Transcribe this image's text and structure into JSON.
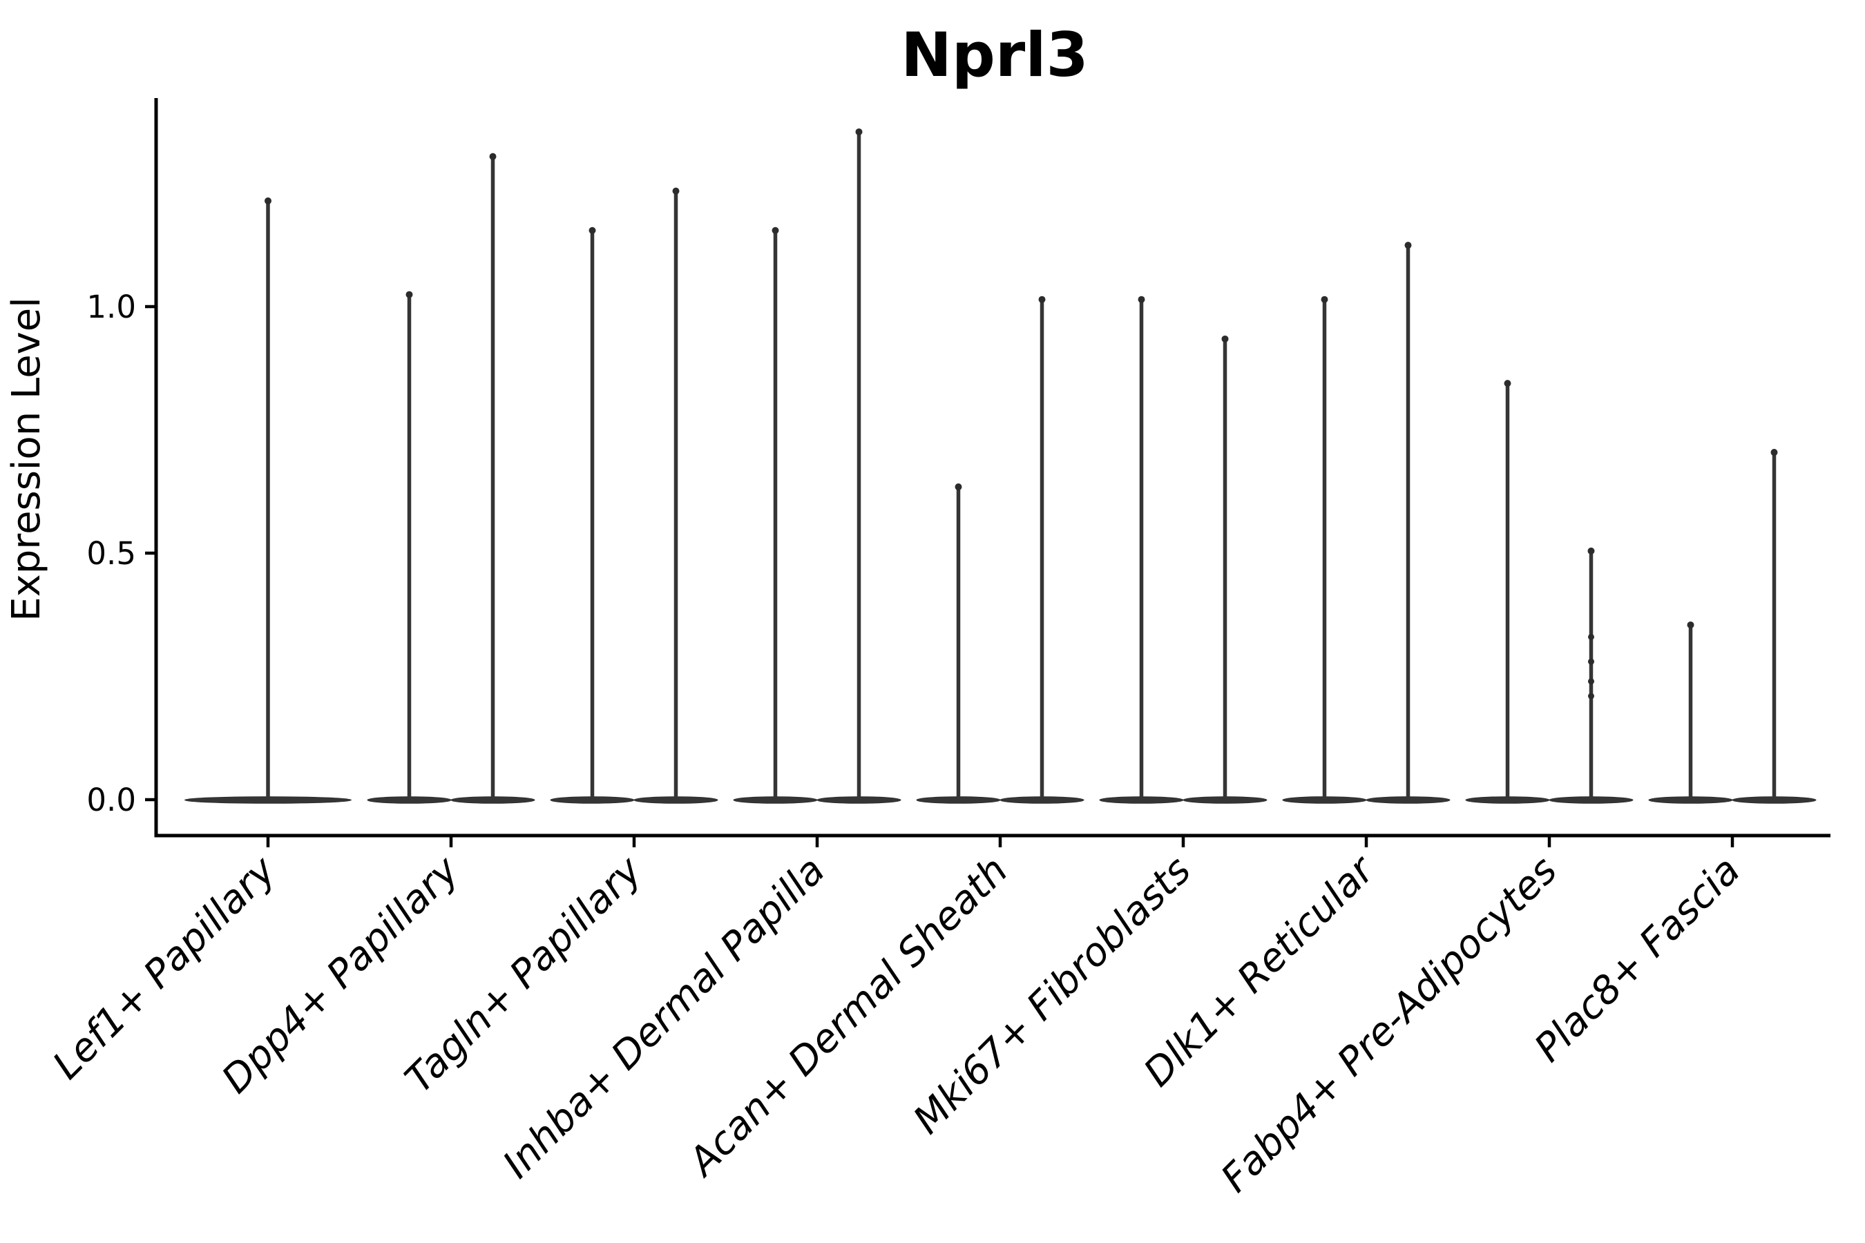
{
  "figure": {
    "title": "Nprl3"
  },
  "y_axis": {
    "label": "Expression Level",
    "tick_labels": [
      "0.0",
      "0.5",
      "1.0"
    ]
  },
  "chart_data": {
    "type": "violin",
    "title": "Nprl3",
    "xlabel": "",
    "ylabel": "Expression Level",
    "ylim": [
      -0.07,
      1.42
    ],
    "yticks": [
      0.0,
      0.5,
      1.0
    ],
    "ytick_labels": [
      "0.0",
      "0.5",
      "1.0"
    ],
    "grid": false,
    "legend": false,
    "categories": [
      "Lef1+ Papillary",
      "Dpp4+ Papillary",
      "Tagln+ Papillary",
      "Inhba+ Dermal Papilla",
      "Acan+ Dermal Sheath",
      "Mki67+ Fibroblasts",
      "Dlk1+ Reticular",
      "Fabp4+ Pre-Adipocytes",
      "Plac8+ Fascia"
    ],
    "violin_max_values": [
      [
        1.22
      ],
      [
        1.03,
        1.31
      ],
      [
        1.16,
        1.24
      ],
      [
        1.16,
        1.36
      ],
      [
        0.64,
        1.02
      ],
      [
        1.02,
        0.94
      ],
      [
        1.02,
        1.13
      ],
      [
        0.85,
        0.51
      ],
      [
        0.36,
        0.71
      ]
    ],
    "distribution_note_value_at_bulk": 0.0,
    "scatter_points": [
      {
        "category_index": 7,
        "violin_index": 1,
        "values": [
          0.33,
          0.28,
          0.24,
          0.21
        ]
      }
    ],
    "colors": {
      "violin_fill": "#353535",
      "violin_edge": "#2c2c2c",
      "axis": "#000000",
      "text": "#000000",
      "background": "#ffffff"
    }
  }
}
